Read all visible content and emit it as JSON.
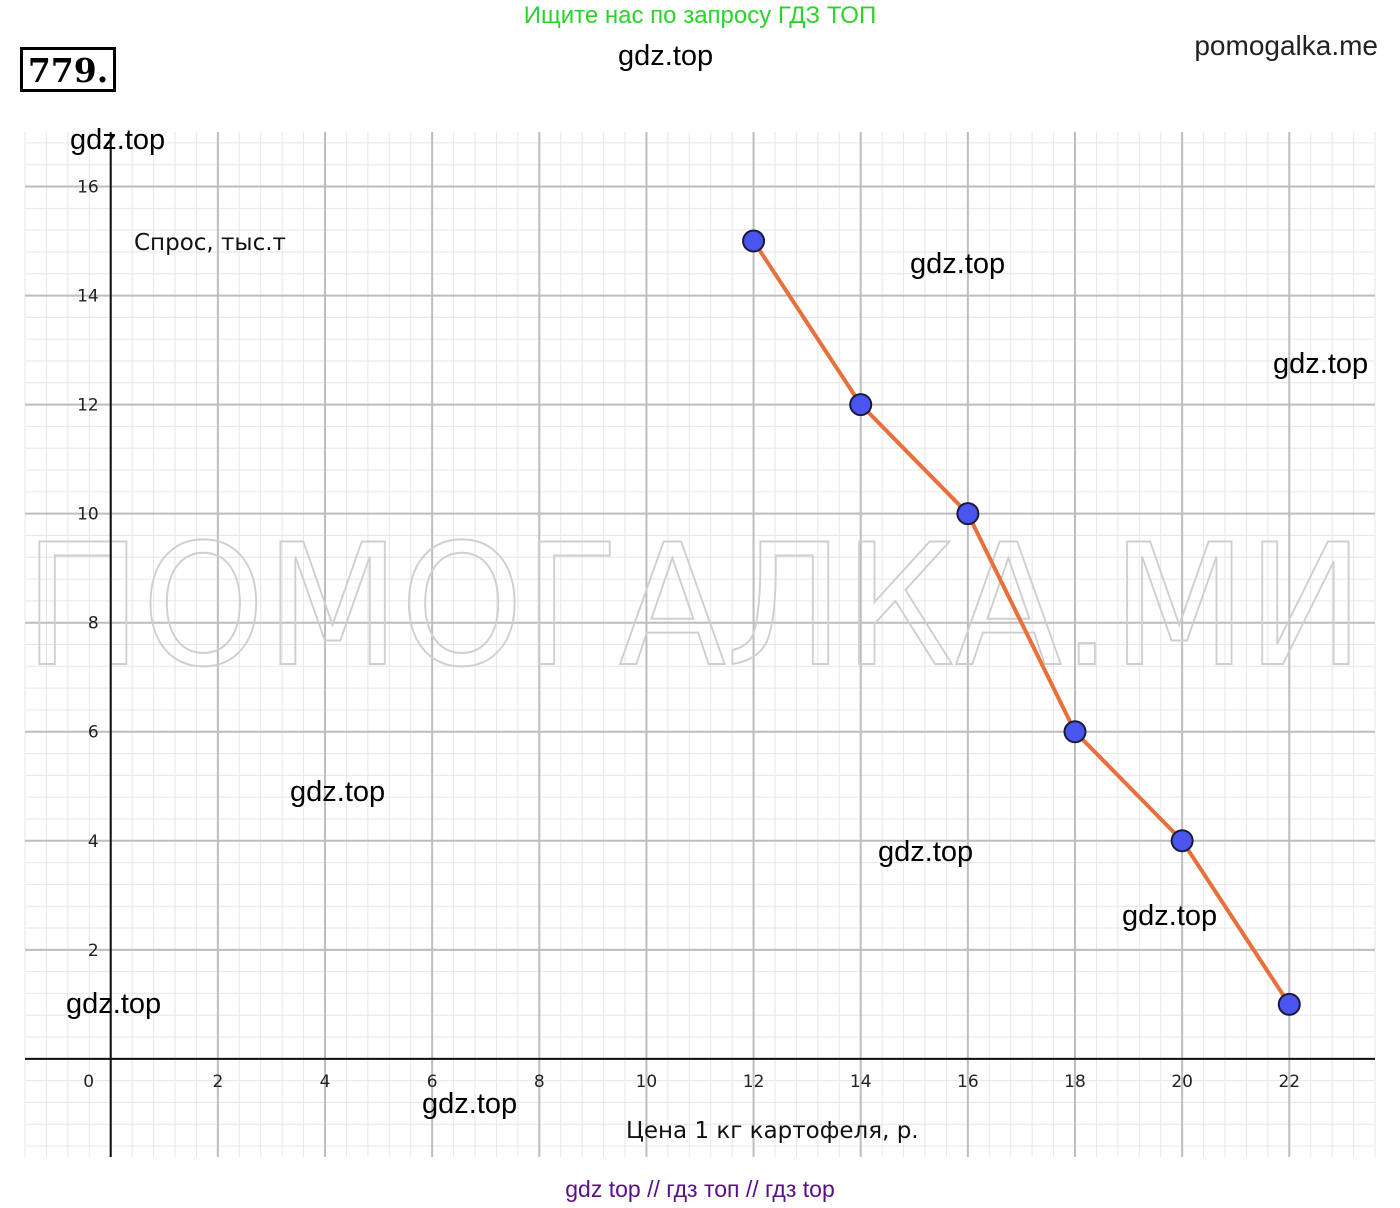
{
  "header": {
    "promo_text": "Ищите нас по запросу ГДЗ ТОП",
    "problem_number": "779.",
    "site_right": "pomogalka.me"
  },
  "watermarks": {
    "gdz": "gdz.top",
    "big": "ПОМОГАЛКА.МИ"
  },
  "footer": {
    "text": "gdz top  //  гдз топ  //  гдз top"
  },
  "colors": {
    "line": "#e8703a",
    "point_fill": "#4a55f0",
    "point_stroke": "#1a1a3a",
    "promo": "#2bd32b",
    "footer": "#5a0f86"
  },
  "chart_data": {
    "type": "line",
    "xlabel": "Цена 1 кг картофеля, р.",
    "ylabel": "Спрос, тыс.т",
    "xlim": [
      -1.6,
      23.6
    ],
    "ylim": [
      -1.8,
      17
    ],
    "x_ticks": [
      0,
      2,
      4,
      6,
      8,
      10,
      12,
      14,
      16,
      18,
      20,
      22
    ],
    "y_ticks": [
      2,
      4,
      6,
      8,
      10,
      12,
      14,
      16
    ],
    "grid": true,
    "series": [
      {
        "x": [
          12,
          14,
          16,
          18,
          20,
          22
        ],
        "y": [
          15,
          12,
          10,
          6,
          4,
          1
        ]
      }
    ]
  }
}
